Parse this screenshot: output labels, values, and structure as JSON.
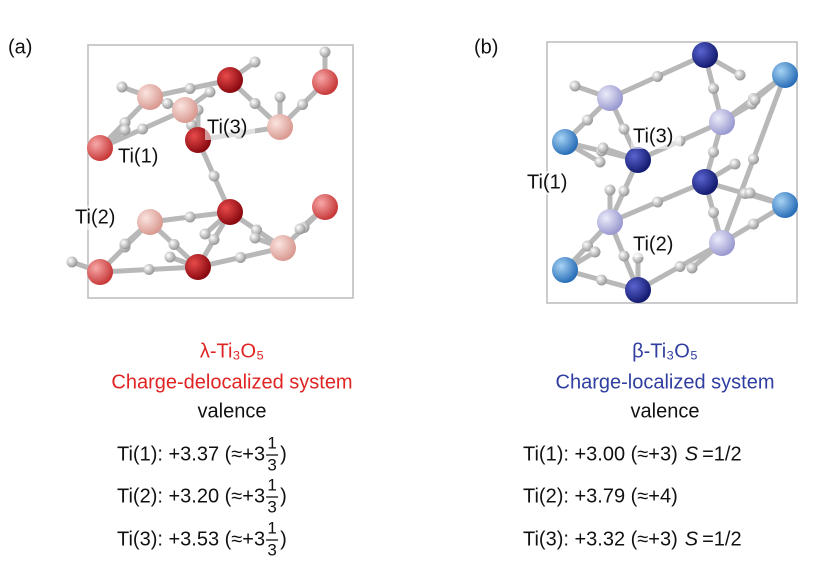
{
  "panels": [
    {
      "tag": "(a)",
      "site_labels": [
        "Ti(1)",
        "Ti(2)",
        "Ti(3)"
      ],
      "title": "λ-Ti₃O₅",
      "subtitle": "Charge-delocalized system",
      "valence_heading": "valence",
      "valences": [
        {
          "text": "Ti(1): +3.37 (≈+3",
          "numerator": "1",
          "denominator": "3",
          "close": ")"
        },
        {
          "text": "Ti(2): +3.20 (≈+3",
          "numerator": "1",
          "denominator": "3",
          "close": ")"
        },
        {
          "text": "Ti(3): +3.53 (≈+3",
          "numerator": "1",
          "denominator": "3",
          "close": ")"
        }
      ]
    },
    {
      "tag": "(b)",
      "site_labels": [
        "Ti(1)",
        "Ti(2)",
        "Ti(3)"
      ],
      "title": "β-Ti₃O₅",
      "subtitle": "Charge-localized system",
      "valence_heading": "valence",
      "valences": [
        {
          "text": "Ti(1): +3.00 (≈+3)",
          "spin_symbol": "S",
          "spin_value": "=1/2"
        },
        {
          "text": "Ti(2): +3.79 (≈+4)"
        },
        {
          "text": "Ti(3): +3.32 (≈+3)",
          "spin_symbol": "S",
          "spin_value": "=1/2"
        }
      ]
    }
  ]
}
